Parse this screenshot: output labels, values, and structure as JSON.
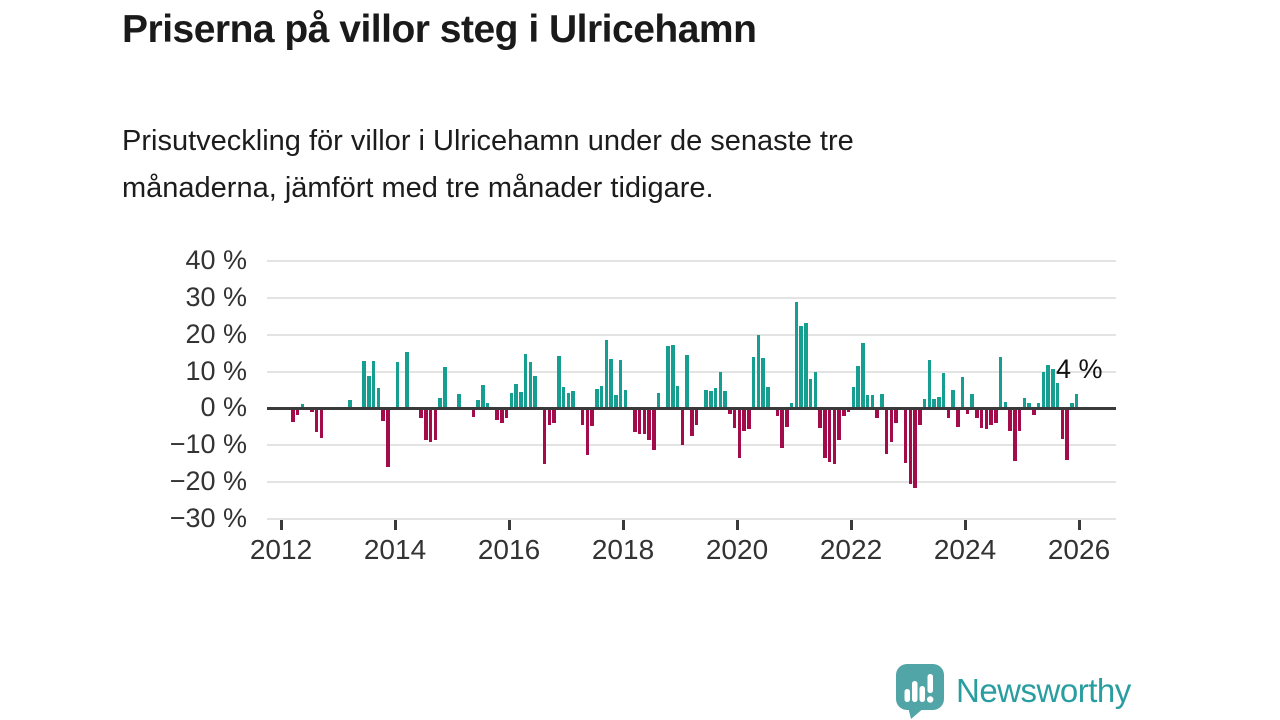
{
  "header": {
    "title": "Priserna på villor steg i Ulricehamn",
    "subtitle_line1": "Prisutveckling för villor i Ulricehamn under de senaste tre",
    "subtitle_line2": "månaderna, jämfört med tre månader tidigare."
  },
  "chart_data": {
    "type": "bar",
    "title": "Priserna på villor steg i Ulricehamn",
    "xlabel": "",
    "ylabel": "",
    "unit": "%",
    "frequency": "monthly",
    "x_start": "2012-01",
    "x_end": "2025-12",
    "ylim": [
      -30,
      40
    ],
    "grid": true,
    "y_ticks": [
      40,
      30,
      20,
      10,
      0,
      -10,
      -20,
      -30
    ],
    "y_tick_labels": [
      "40 %",
      "30 %",
      "20 %",
      "10 %",
      "0 %",
      "−10 %",
      "−20 %",
      "−30 %"
    ],
    "x_tick_labels": [
      "2012",
      "2014",
      "2016",
      "2018",
      "2020",
      "2022",
      "2024",
      "2026"
    ],
    "annotation": {
      "text": "4 %",
      "value": 4,
      "refers_to": "2025-12"
    },
    "colors": {
      "positive": "#169e91",
      "negative": "#a30b4a",
      "zero_line": "#3a3a3a",
      "gridline": "#e3e3e3"
    },
    "series": [
      {
        "name": "Prisutveckling villor Ulricehamn, 3 mån jämfört med 3 mån tidigare",
        "values": [
          0,
          0,
          -3.8,
          -1.8,
          1.3,
          0.5,
          -1.0,
          -6.4,
          -8.0,
          0,
          0,
          0,
          0,
          0,
          2.3,
          0,
          0,
          12.9,
          8.8,
          12.9,
          5.4,
          -3.4,
          -16.0,
          0,
          12.7,
          0,
          15.3,
          0,
          0,
          -2.5,
          -8.6,
          -9.0,
          -8.6,
          2.7,
          11.3,
          0,
          0,
          4.0,
          0,
          0,
          -2.3,
          2.4,
          6.4,
          1.4,
          0,
          -3.2,
          -4.0,
          -2.5,
          4.3,
          6.7,
          4.5,
          14.7,
          12.6,
          8.8,
          0,
          -15.0,
          -4.5,
          -4.0,
          14.2,
          5.9,
          4.3,
          4.8,
          0,
          -4.4,
          -12.6,
          -4.9,
          5.3,
          6.1,
          18.5,
          13.4,
          3.6,
          13.1,
          5.1,
          0,
          -6.4,
          -6.9,
          -7.0,
          -8.6,
          -11.3,
          4.3,
          0,
          16.9,
          17.2,
          6.2,
          -9.8,
          14.5,
          -7.6,
          -4.6,
          0,
          5.1,
          4.8,
          5.5,
          9.8,
          4.8,
          -1.5,
          -5.2,
          -13.5,
          -6.2,
          -5.7,
          14.0,
          20.0,
          13.7,
          5.9,
          0,
          -2.0,
          -10.8,
          -5.0,
          1.5,
          29.0,
          22.3,
          23.1,
          8.0,
          9.9,
          -5.4,
          -13.5,
          -14.6,
          -15.1,
          -8.6,
          -2.0,
          -1.0,
          5.7,
          11.6,
          17.8,
          3.5,
          3.5,
          -2.5,
          4.0,
          -12.4,
          -9.0,
          -4.0,
          0,
          -14.8,
          -20.5,
          -21.5,
          -4.5,
          2.5,
          13.0,
          2.5,
          3.0,
          9.5,
          -2.5,
          5.0,
          -5.0,
          8.5,
          -1.5,
          4.0,
          -2.5,
          -5.4,
          -5.5,
          -4.5,
          -4.0,
          14.0,
          1.7,
          -6.0,
          -14.2,
          -6.2,
          2.9,
          1.5,
          -1.9,
          1.5,
          9.8,
          11.7,
          10.7,
          7.0,
          -8.4,
          -13.9,
          1.5,
          4.0
        ]
      }
    ]
  },
  "footer": {
    "brand": "Newsworthy",
    "logo_icon": "bar-chart-speech-bubble-icon",
    "brand_color": "#2a9da0",
    "icon_color": "#52a5a6"
  }
}
